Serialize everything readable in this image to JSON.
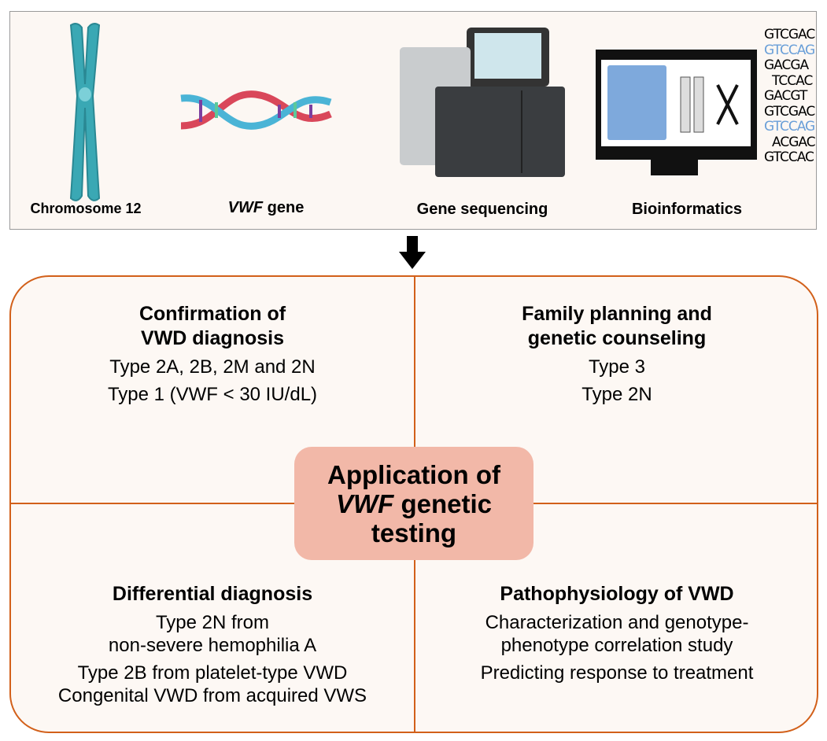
{
  "top_panel": {
    "items": [
      {
        "label": "Chromosome 12",
        "icon": "chromosome-icon"
      },
      {
        "label_italic": "VWF",
        "label_rest": " gene",
        "icon": "dna-helix-icon"
      },
      {
        "label": "Gene sequencing",
        "icon": "sequencer-icon"
      },
      {
        "label": "Bioinformatics",
        "icon": "computer-icon"
      }
    ],
    "sequence_lines": [
      "GTCGAC",
      "GTCCAG",
      "GACGA",
      "TCCAC",
      "GACGT",
      "GTCGAC",
      "GTCCAG",
      "ACGAC",
      "GTCCAC"
    ]
  },
  "center": {
    "line1": "Application of",
    "line2_italic": "VWF",
    "line2_rest": " genetic",
    "line3": "testing"
  },
  "quadrants": {
    "top_left": {
      "title_1": "Confirmation of",
      "title_2": "VWD diagnosis",
      "items": [
        "Type 2A, 2B, 2M and 2N",
        "Type 1 (VWF < 30 IU/dL)"
      ]
    },
    "top_right": {
      "title_1": "Family planning and",
      "title_2": "genetic counseling",
      "items": [
        "Type 3",
        "Type 2N"
      ]
    },
    "bottom_left": {
      "title": "Differential diagnosis",
      "items": [
        "Type 2N from",
        "non-severe hemophilia A",
        "Type 2B from platelet-type VWD",
        "Congenital VWD from acquired VWS"
      ]
    },
    "bottom_right": {
      "title": "Pathophysiology of VWD",
      "items": [
        "Characterization and genotype-",
        "phenotype correlation study",
        "Predicting response to treatment"
      ]
    }
  },
  "colors": {
    "border": "#d2601a",
    "pill": "#f2b8a8",
    "chromosome": "#3aa8b4"
  }
}
